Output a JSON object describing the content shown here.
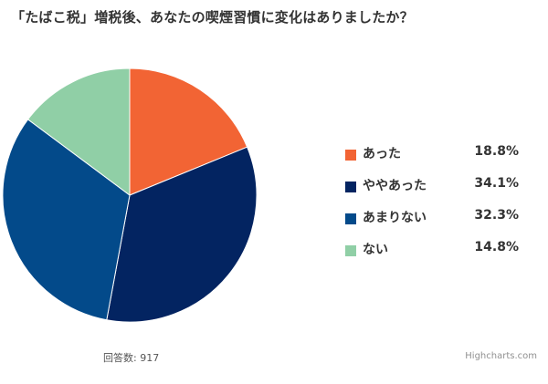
{
  "title": "「たばこ税」増税後、あなたの喫煙習慣に変化はありましたか？",
  "chart_data": {
    "type": "pie",
    "title": "「たばこ税」増税後、あなたの喫煙習慣に変化はありましたか？",
    "slices": [
      {
        "label": "あった",
        "value": 18.8,
        "display": "18.8%",
        "color": "#f26434"
      },
      {
        "label": "ややあった",
        "value": 34.1,
        "display": "34.1%",
        "color": "#032461"
      },
      {
        "label": "あまりない",
        "value": 32.3,
        "display": "32.3%",
        "color": "#034a8a"
      },
      {
        "label": "ない",
        "value": 14.8,
        "display": "14.8%",
        "color": "#90cfa6"
      }
    ],
    "start_angle_deg": 0,
    "direction": "clockwise",
    "legend_position": "right"
  },
  "footer": {
    "responses": "回答数: 917",
    "credits": "Highcharts.com"
  }
}
